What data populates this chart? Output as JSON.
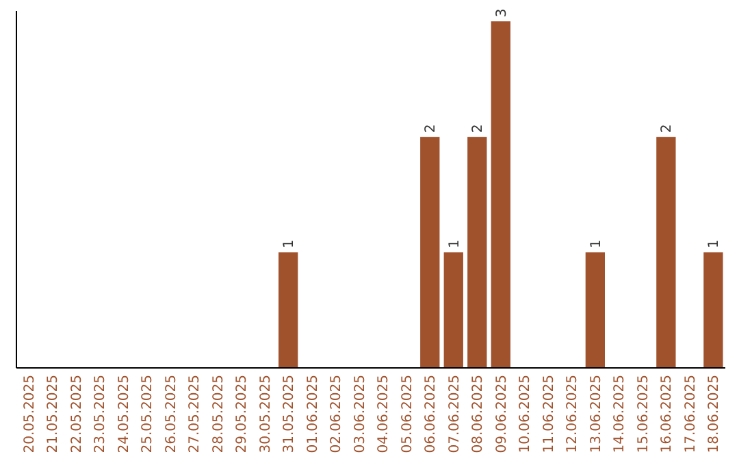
{
  "chart_data": {
    "type": "bar",
    "categories": [
      "20.05.2025",
      "21.05.2025",
      "22.05.2025",
      "23.05.2025",
      "24.05.2025",
      "25.05.2025",
      "26.05.2025",
      "27.05.2025",
      "28.05.2025",
      "29.05.2025",
      "30.05.2025",
      "31.05.2025",
      "01.06.2025",
      "02.06.2025",
      "03.06.2025",
      "04.06.2025",
      "05.06.2025",
      "06.06.2025",
      "07.06.2025",
      "08.06.2025",
      "09.06.2025",
      "10.06.2025",
      "11.06.2025",
      "12.06.2025",
      "13.06.2025",
      "14.06.2025",
      "15.06.2025",
      "16.06.2025",
      "17.06.2025",
      "18.06.2025"
    ],
    "values": [
      0,
      0,
      0,
      0,
      0,
      0,
      0,
      0,
      0,
      0,
      0,
      1,
      0,
      0,
      0,
      0,
      0,
      2,
      1,
      2,
      3,
      0,
      0,
      0,
      1,
      0,
      0,
      2,
      0,
      1
    ],
    "value_labels": [
      null,
      null,
      null,
      null,
      null,
      null,
      null,
      null,
      null,
      null,
      null,
      "1",
      null,
      null,
      null,
      null,
      null,
      "2",
      "1",
      "2",
      "3",
      null,
      null,
      null,
      "1",
      null,
      null,
      "2",
      null,
      "1"
    ],
    "color": "#a0522d"
  }
}
